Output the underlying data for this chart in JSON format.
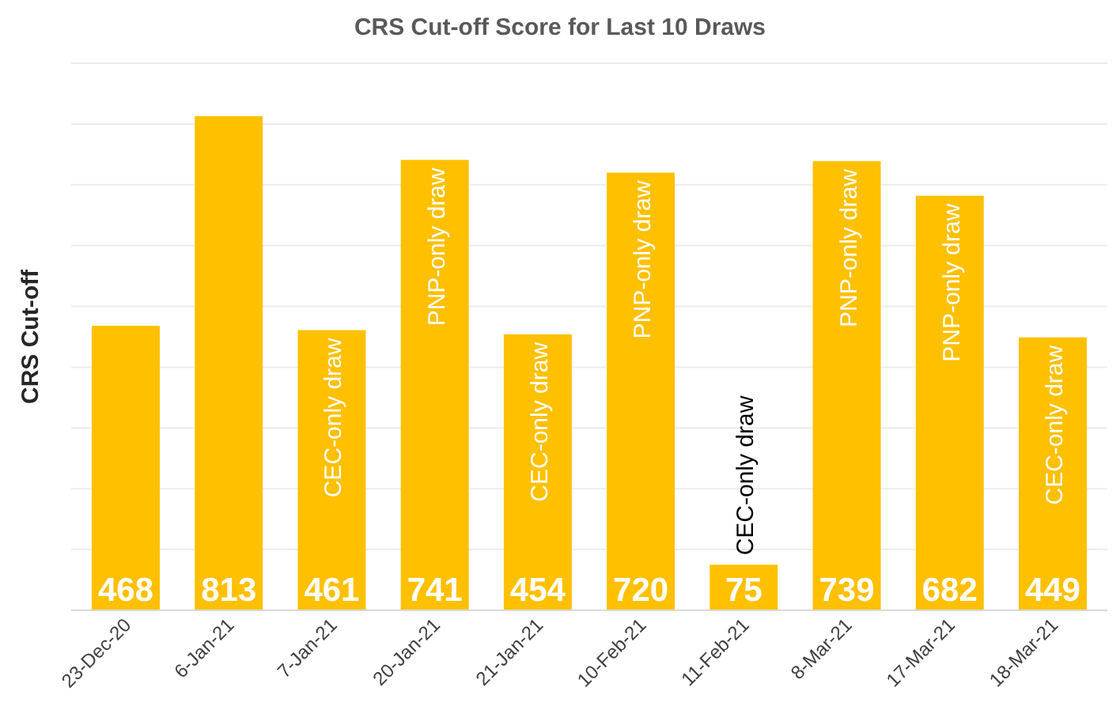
{
  "chart_data": {
    "type": "bar",
    "title": "CRS Cut-off Score for Last 10 Draws",
    "ylabel": "CRS Cut-off",
    "categories": [
      "23-Dec-20",
      "6-Jan-21",
      "7-Jan-21",
      "20-Jan-21",
      "21-Jan-21",
      "10-Feb-21",
      "11-Feb-21",
      "8-Mar-21",
      "17-Mar-21",
      "18-Mar-21"
    ],
    "values": [
      468,
      813,
      461,
      741,
      454,
      720,
      75,
      739,
      682,
      449
    ],
    "color": "#ffc000",
    "ylim": [
      0,
      900
    ],
    "yticks": [
      {
        "value": 0,
        "label": null
      },
      {
        "value": 100,
        "label": null
      },
      {
        "value": 200,
        "label": null
      },
      {
        "value": 300,
        "label": null
      },
      {
        "value": 400,
        "label": null
      },
      {
        "value": 500,
        "label": null
      },
      {
        "value": 600,
        "label": null
      },
      {
        "value": 700,
        "label": null
      },
      {
        "value": 800,
        "label": null
      },
      {
        "value": 900,
        "label": null
      }
    ],
    "grid": "y",
    "tick_labels": "x",
    "data_labels": true,
    "annotations": [
      {
        "text": "CEC-only draw",
        "x": "7-Jan-21",
        "y": 461
      },
      {
        "text": "PNP-only draw",
        "x": "20-Jan-21",
        "y": 741
      },
      {
        "text": "CEC-only draw",
        "x": "21-Jan-21",
        "y": 454
      },
      {
        "text": "PNP-only draw",
        "x": "10-Feb-21",
        "y": 720
      },
      {
        "text": "CEC-only draw",
        "x": "11-Feb-21",
        "y": 75
      },
      {
        "text": "PNP-only draw",
        "x": "8-Mar-21",
        "y": 739
      },
      {
        "text": "PNP-only draw",
        "x": "17-Mar-21",
        "y": 682
      },
      {
        "text": "CEC-only draw",
        "x": "18-Mar-21",
        "y": 449
      }
    ]
  }
}
